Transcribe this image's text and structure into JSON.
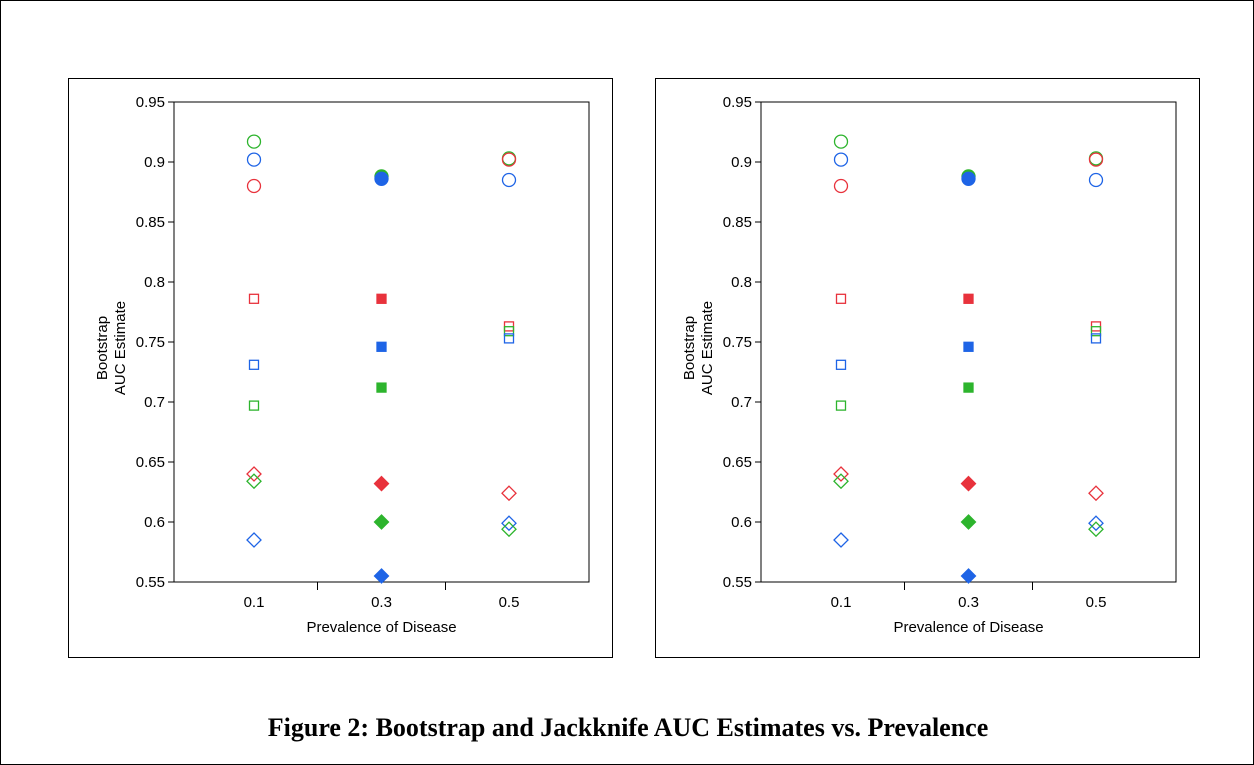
{
  "caption": "Figure 2: Bootstrap and Jackknife AUC Estimates vs. Prevalence",
  "colors": {
    "red": "#e8323c",
    "blue": "#1e64e6",
    "green": "#2db42d"
  },
  "chart_data": [
    {
      "type": "scatter",
      "xlabel": "Prevalence of Disease",
      "ylabel_lines": [
        "Bootstrap",
        "AUC Estimate"
      ],
      "categories": [
        "0.1",
        "0.3",
        "0.5"
      ],
      "ylim": [
        0.55,
        0.95
      ],
      "yticks": [
        "0.55",
        "0.6",
        "0.65",
        "0.7",
        "0.75",
        "0.8",
        "0.85",
        "0.9",
        "0.95"
      ],
      "grid": false,
      "points": [
        {
          "x": "0.1",
          "y": 0.917,
          "shape": "circle",
          "fill": false,
          "color": "green"
        },
        {
          "x": "0.1",
          "y": 0.902,
          "shape": "circle",
          "fill": false,
          "color": "blue"
        },
        {
          "x": "0.1",
          "y": 0.88,
          "shape": "circle",
          "fill": false,
          "color": "red"
        },
        {
          "x": "0.1",
          "y": 0.786,
          "shape": "square",
          "fill": false,
          "color": "red"
        },
        {
          "x": "0.1",
          "y": 0.731,
          "shape": "square",
          "fill": false,
          "color": "blue"
        },
        {
          "x": "0.1",
          "y": 0.697,
          "shape": "square",
          "fill": false,
          "color": "green"
        },
        {
          "x": "0.1",
          "y": 0.64,
          "shape": "diamond",
          "fill": false,
          "color": "red"
        },
        {
          "x": "0.1",
          "y": 0.634,
          "shape": "diamond",
          "fill": false,
          "color": "green"
        },
        {
          "x": "0.1",
          "y": 0.585,
          "shape": "diamond",
          "fill": false,
          "color": "blue"
        },
        {
          "x": "0.3",
          "y": 0.888,
          "shape": "circle",
          "fill": true,
          "color": "green"
        },
        {
          "x": "0.3",
          "y": 0.886,
          "shape": "circle",
          "fill": true,
          "color": "blue"
        },
        {
          "x": "0.3",
          "y": 0.786,
          "shape": "square",
          "fill": true,
          "color": "red"
        },
        {
          "x": "0.3",
          "y": 0.746,
          "shape": "square",
          "fill": true,
          "color": "blue"
        },
        {
          "x": "0.3",
          "y": 0.712,
          "shape": "square",
          "fill": true,
          "color": "green"
        },
        {
          "x": "0.3",
          "y": 0.632,
          "shape": "diamond",
          "fill": true,
          "color": "red"
        },
        {
          "x": "0.3",
          "y": 0.6,
          "shape": "diamond",
          "fill": true,
          "color": "green"
        },
        {
          "x": "0.3",
          "y": 0.555,
          "shape": "diamond",
          "fill": true,
          "color": "blue"
        },
        {
          "x": "0.5",
          "y": 0.903,
          "shape": "circle",
          "fill": false,
          "color": "green"
        },
        {
          "x": "0.5",
          "y": 0.902,
          "shape": "circle",
          "fill": false,
          "color": "red"
        },
        {
          "x": "0.5",
          "y": 0.885,
          "shape": "circle",
          "fill": false,
          "color": "blue"
        },
        {
          "x": "0.5",
          "y": 0.763,
          "shape": "square",
          "fill": false,
          "color": "red"
        },
        {
          "x": "0.5",
          "y": 0.759,
          "shape": "square",
          "fill": false,
          "color": "green"
        },
        {
          "x": "0.5",
          "y": 0.753,
          "shape": "square",
          "fill": false,
          "color": "blue"
        },
        {
          "x": "0.5",
          "y": 0.624,
          "shape": "diamond",
          "fill": false,
          "color": "red"
        },
        {
          "x": "0.5",
          "y": 0.599,
          "shape": "diamond",
          "fill": false,
          "color": "blue"
        },
        {
          "x": "0.5",
          "y": 0.594,
          "shape": "diamond",
          "fill": false,
          "color": "green"
        }
      ]
    },
    {
      "type": "scatter",
      "xlabel": "Prevalence of Disease",
      "ylabel_lines": [
        "Bootstrap",
        "AUC Estimate"
      ],
      "categories": [
        "0.1",
        "0.3",
        "0.5"
      ],
      "ylim": [
        0.55,
        0.95
      ],
      "yticks": [
        "0.55",
        "0.6",
        "0.65",
        "0.7",
        "0.75",
        "0.8",
        "0.85",
        "0.9",
        "0.95"
      ],
      "grid": false,
      "points": [
        {
          "x": "0.1",
          "y": 0.917,
          "shape": "circle",
          "fill": false,
          "color": "green"
        },
        {
          "x": "0.1",
          "y": 0.902,
          "shape": "circle",
          "fill": false,
          "color": "blue"
        },
        {
          "x": "0.1",
          "y": 0.88,
          "shape": "circle",
          "fill": false,
          "color": "red"
        },
        {
          "x": "0.1",
          "y": 0.786,
          "shape": "square",
          "fill": false,
          "color": "red"
        },
        {
          "x": "0.1",
          "y": 0.731,
          "shape": "square",
          "fill": false,
          "color": "blue"
        },
        {
          "x": "0.1",
          "y": 0.697,
          "shape": "square",
          "fill": false,
          "color": "green"
        },
        {
          "x": "0.1",
          "y": 0.64,
          "shape": "diamond",
          "fill": false,
          "color": "red"
        },
        {
          "x": "0.1",
          "y": 0.634,
          "shape": "diamond",
          "fill": false,
          "color": "green"
        },
        {
          "x": "0.1",
          "y": 0.585,
          "shape": "diamond",
          "fill": false,
          "color": "blue"
        },
        {
          "x": "0.3",
          "y": 0.888,
          "shape": "circle",
          "fill": true,
          "color": "green"
        },
        {
          "x": "0.3",
          "y": 0.886,
          "shape": "circle",
          "fill": true,
          "color": "blue"
        },
        {
          "x": "0.3",
          "y": 0.786,
          "shape": "square",
          "fill": true,
          "color": "red"
        },
        {
          "x": "0.3",
          "y": 0.746,
          "shape": "square",
          "fill": true,
          "color": "blue"
        },
        {
          "x": "0.3",
          "y": 0.712,
          "shape": "square",
          "fill": true,
          "color": "green"
        },
        {
          "x": "0.3",
          "y": 0.632,
          "shape": "diamond",
          "fill": true,
          "color": "red"
        },
        {
          "x": "0.3",
          "y": 0.6,
          "shape": "diamond",
          "fill": true,
          "color": "green"
        },
        {
          "x": "0.3",
          "y": 0.555,
          "shape": "diamond",
          "fill": true,
          "color": "blue"
        },
        {
          "x": "0.5",
          "y": 0.903,
          "shape": "circle",
          "fill": false,
          "color": "green"
        },
        {
          "x": "0.5",
          "y": 0.902,
          "shape": "circle",
          "fill": false,
          "color": "red"
        },
        {
          "x": "0.5",
          "y": 0.885,
          "shape": "circle",
          "fill": false,
          "color": "blue"
        },
        {
          "x": "0.5",
          "y": 0.763,
          "shape": "square",
          "fill": false,
          "color": "red"
        },
        {
          "x": "0.5",
          "y": 0.759,
          "shape": "square",
          "fill": false,
          "color": "green"
        },
        {
          "x": "0.5",
          "y": 0.753,
          "shape": "square",
          "fill": false,
          "color": "blue"
        },
        {
          "x": "0.5",
          "y": 0.624,
          "shape": "diamond",
          "fill": false,
          "color": "red"
        },
        {
          "x": "0.5",
          "y": 0.599,
          "shape": "diamond",
          "fill": false,
          "color": "blue"
        },
        {
          "x": "0.5",
          "y": 0.594,
          "shape": "diamond",
          "fill": false,
          "color": "green"
        }
      ]
    }
  ]
}
